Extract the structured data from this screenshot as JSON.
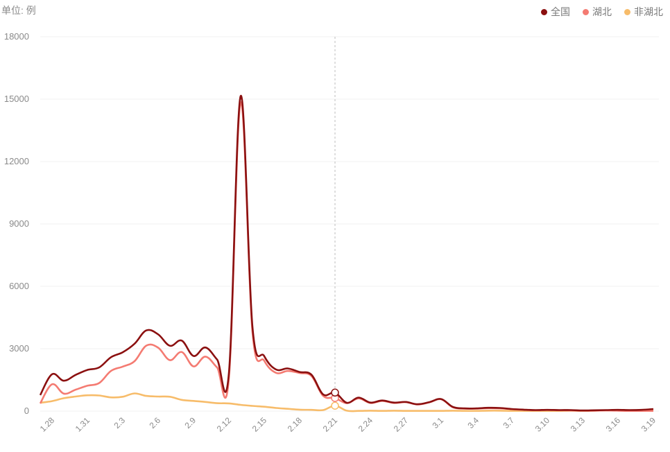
{
  "chart_data": {
    "type": "line",
    "unit_label": "单位: 例",
    "ylim": [
      0,
      18000
    ],
    "yticks": [
      0,
      3000,
      6000,
      9000,
      12000,
      15000,
      18000
    ],
    "x": [
      "1.27",
      "1.28",
      "1.29",
      "1.30",
      "1.31",
      "2.1",
      "2.2",
      "2.3",
      "2.4",
      "2.5",
      "2.6",
      "2.7",
      "2.8",
      "2.9",
      "2.10",
      "2.11",
      "2.12",
      "2.13",
      "2.14",
      "2.15",
      "2.16",
      "2.17",
      "2.18",
      "2.19",
      "2.20",
      "2.21",
      "2.22",
      "2.23",
      "2.24",
      "2.25",
      "2.26",
      "2.27",
      "2.28",
      "2.29",
      "3.1",
      "3.2",
      "3.3",
      "3.4",
      "3.5",
      "3.6",
      "3.7",
      "3.8",
      "3.9",
      "3.10",
      "3.11",
      "3.12",
      "3.13",
      "3.14",
      "3.15",
      "3.16",
      "3.17",
      "3.18",
      "3.19"
    ],
    "x_tick_labels": [
      "1.28",
      "1.31",
      "2.3",
      "2.6",
      "2.9",
      "2.12",
      "2.15",
      "2.18",
      "2.21",
      "2.24",
      "2.27",
      "3.1",
      "3.4",
      "3.7",
      "3.10",
      "3.13",
      "3.16",
      "3.19"
    ],
    "legend_position": "top-right",
    "grid": true,
    "highlight_x": "2.21",
    "series": [
      {
        "name": "全国",
        "color": "#8b1010",
        "values": [
          770,
          1770,
          1460,
          1740,
          1980,
          2100,
          2590,
          2830,
          3240,
          3880,
          3690,
          3140,
          3390,
          2650,
          3060,
          2480,
          1820,
          15150,
          4050,
          2640,
          2000,
          2050,
          1880,
          1750,
          800,
          890,
          400,
          650,
          410,
          510,
          410,
          440,
          330,
          430,
          580,
          200,
          130,
          130,
          160,
          150,
          100,
          70,
          50,
          60,
          50,
          50,
          30,
          40,
          50,
          60,
          50,
          60,
          100
        ]
      },
      {
        "name": "湖北",
        "color": "#f47b72",
        "values": [
          370,
          1290,
          840,
          1030,
          1220,
          1350,
          1930,
          2140,
          2400,
          3150,
          3050,
          2450,
          2840,
          2150,
          2620,
          2100,
          1570,
          14840,
          3800,
          2420,
          1840,
          1930,
          1830,
          1690,
          730,
          630,
          380,
          610,
          390,
          490,
          390,
          430,
          320,
          420,
          570,
          180,
          120,
          120,
          140,
          130,
          90,
          60,
          40,
          50,
          40,
          30,
          20,
          20,
          30,
          20,
          10,
          10,
          10
        ]
      },
      {
        "name": "非湖北",
        "color": "#f7bc6a",
        "values": [
          400,
          480,
          620,
          700,
          760,
          750,
          660,
          690,
          850,
          730,
          700,
          690,
          540,
          490,
          440,
          380,
          370,
          300,
          250,
          210,
          150,
          110,
          70,
          60,
          50,
          260,
          20,
          10,
          20,
          10,
          20,
          10,
          10,
          10,
          10,
          20,
          10,
          10,
          20,
          20,
          10,
          10,
          10,
          10,
          10,
          20,
          10,
          20,
          30,
          40,
          40,
          50,
          90
        ]
      }
    ]
  }
}
